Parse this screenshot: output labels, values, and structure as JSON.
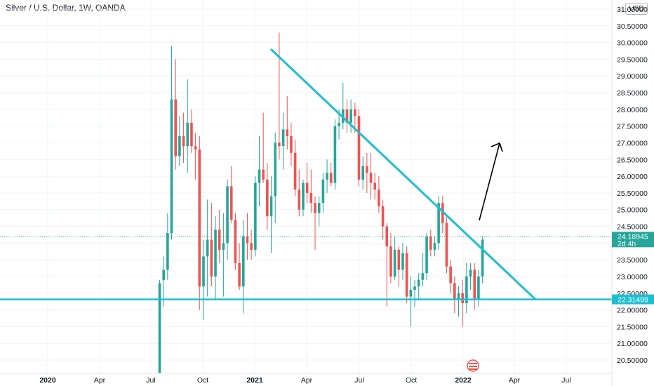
{
  "header": {
    "title": "Silver / U.S. Dollar, 1W, OANDA",
    "currency": "USD"
  },
  "colors": {
    "up": "#26a69a",
    "down": "#ef5350",
    "trendline": "#1cbfd1",
    "arrow": "#000000",
    "grid": "#f0f3fa"
  },
  "chart_data": {
    "type": "candlestick",
    "title": "Silver / U.S. Dollar, 1W, OANDA",
    "ylim": [
      20.2,
      31.55
    ],
    "y_ticks": [
      "31.00000",
      "30.50000",
      "30.00000",
      "29.50000",
      "29.00000",
      "28.50000",
      "28.00000",
      "27.50000",
      "27.00000",
      "26.50000",
      "26.00000",
      "25.50000",
      "25.00000",
      "24.50000",
      "24.00000",
      "23.50000",
      "23.00000",
      "22.50000",
      "22.00000",
      "21.50000",
      "21.00000",
      "20.50000"
    ],
    "x_ticks": [
      {
        "label": "2020",
        "bold": true
      },
      {
        "label": "Apr",
        "bold": false
      },
      {
        "label": "Jul",
        "bold": false
      },
      {
        "label": "Oct",
        "bold": false
      },
      {
        "label": "2021",
        "bold": true
      },
      {
        "label": "Apr",
        "bold": false
      },
      {
        "label": "Jul",
        "bold": false
      },
      {
        "label": "Oct",
        "bold": false
      },
      {
        "label": "2022",
        "bold": true
      },
      {
        "label": "Apr",
        "bold": false
      },
      {
        "label": "Jul",
        "bold": false
      }
    ],
    "last_price": {
      "value": 24.18945,
      "label": "24.18945",
      "countdown": "2d 4h"
    },
    "support_level": {
      "value": 22.31499,
      "label": "22.31499"
    },
    "candles": [
      {
        "o": 17.5,
        "h": 22.9,
        "l": 15.0,
        "c": 22.8
      },
      {
        "o": 22.9,
        "h": 23.6,
        "l": 22.1,
        "c": 23.2
      },
      {
        "o": 23.2,
        "h": 24.9,
        "l": 22.9,
        "c": 24.3
      },
      {
        "o": 24.3,
        "h": 29.9,
        "l": 24.1,
        "c": 28.3
      },
      {
        "o": 28.3,
        "h": 29.5,
        "l": 26.2,
        "c": 26.6
      },
      {
        "o": 26.6,
        "h": 27.8,
        "l": 26.3,
        "c": 27.2
      },
      {
        "o": 27.2,
        "h": 27.9,
        "l": 26.4,
        "c": 26.9
      },
      {
        "o": 26.9,
        "h": 28.9,
        "l": 26.1,
        "c": 27.6
      },
      {
        "o": 27.6,
        "h": 28.0,
        "l": 26.7,
        "c": 26.9
      },
      {
        "o": 26.9,
        "h": 27.3,
        "l": 25.9,
        "c": 26.8
      },
      {
        "o": 26.8,
        "h": 27.2,
        "l": 22.0,
        "c": 22.7
      },
      {
        "o": 22.7,
        "h": 24.1,
        "l": 21.7,
        "c": 23.6
      },
      {
        "o": 23.6,
        "h": 25.3,
        "l": 22.4,
        "c": 24.1
      },
      {
        "o": 24.1,
        "h": 25.2,
        "l": 22.7,
        "c": 23.0
      },
      {
        "o": 23.0,
        "h": 24.8,
        "l": 22.3,
        "c": 24.4
      },
      {
        "o": 24.4,
        "h": 25.0,
        "l": 23.4,
        "c": 23.8
      },
      {
        "o": 23.8,
        "h": 24.9,
        "l": 22.4,
        "c": 24.0
      },
      {
        "o": 24.0,
        "h": 25.9,
        "l": 23.5,
        "c": 25.7
      },
      {
        "o": 25.7,
        "h": 26.3,
        "l": 24.6,
        "c": 24.7
      },
      {
        "o": 24.7,
        "h": 24.9,
        "l": 23.2,
        "c": 23.4
      },
      {
        "o": 23.4,
        "h": 24.0,
        "l": 22.6,
        "c": 22.7
      },
      {
        "o": 22.7,
        "h": 24.7,
        "l": 21.9,
        "c": 24.2
      },
      {
        "o": 24.2,
        "h": 24.9,
        "l": 23.5,
        "c": 24.0
      },
      {
        "o": 24.0,
        "h": 24.4,
        "l": 23.5,
        "c": 23.8
      },
      {
        "o": 23.8,
        "h": 26.0,
        "l": 23.6,
        "c": 25.8
      },
      {
        "o": 25.8,
        "h": 27.2,
        "l": 25.1,
        "c": 26.2
      },
      {
        "o": 26.2,
        "h": 27.9,
        "l": 25.8,
        "c": 25.9
      },
      {
        "o": 25.9,
        "h": 26.4,
        "l": 24.4,
        "c": 24.8
      },
      {
        "o": 24.8,
        "h": 26.0,
        "l": 23.7,
        "c": 25.4
      },
      {
        "o": 25.4,
        "h": 27.3,
        "l": 24.6,
        "c": 27.0
      },
      {
        "o": 27.0,
        "h": 30.3,
        "l": 26.5,
        "c": 26.9
      },
      {
        "o": 26.9,
        "h": 27.9,
        "l": 26.2,
        "c": 27.4
      },
      {
        "o": 27.4,
        "h": 28.4,
        "l": 26.8,
        "c": 27.2
      },
      {
        "o": 27.2,
        "h": 27.6,
        "l": 26.3,
        "c": 26.7
      },
      {
        "o": 26.7,
        "h": 27.1,
        "l": 25.4,
        "c": 25.6
      },
      {
        "o": 25.6,
        "h": 26.2,
        "l": 24.8,
        "c": 25.0
      },
      {
        "o": 25.0,
        "h": 25.9,
        "l": 24.8,
        "c": 25.8
      },
      {
        "o": 25.8,
        "h": 26.4,
        "l": 25.2,
        "c": 25.5
      },
      {
        "o": 25.5,
        "h": 26.2,
        "l": 24.9,
        "c": 25.2
      },
      {
        "o": 25.2,
        "h": 25.4,
        "l": 23.8,
        "c": 24.9
      },
      {
        "o": 24.9,
        "h": 25.4,
        "l": 24.5,
        "c": 25.2
      },
      {
        "o": 25.2,
        "h": 26.1,
        "l": 24.9,
        "c": 25.9
      },
      {
        "o": 25.9,
        "h": 26.5,
        "l": 25.5,
        "c": 26.1
      },
      {
        "o": 26.1,
        "h": 26.4,
        "l": 25.7,
        "c": 25.8
      },
      {
        "o": 25.8,
        "h": 27.7,
        "l": 25.6,
        "c": 27.5
      },
      {
        "o": 27.5,
        "h": 28.0,
        "l": 27.1,
        "c": 27.6
      },
      {
        "o": 27.6,
        "h": 28.8,
        "l": 27.4,
        "c": 28.0
      },
      {
        "o": 28.0,
        "h": 28.3,
        "l": 27.3,
        "c": 27.6
      },
      {
        "o": 27.6,
        "h": 28.3,
        "l": 27.3,
        "c": 28.0
      },
      {
        "o": 28.0,
        "h": 28.2,
        "l": 27.3,
        "c": 27.8
      },
      {
        "o": 27.8,
        "h": 28.0,
        "l": 25.7,
        "c": 25.9
      },
      {
        "o": 25.9,
        "h": 26.6,
        "l": 25.6,
        "c": 26.3
      },
      {
        "o": 26.3,
        "h": 26.7,
        "l": 25.5,
        "c": 26.1
      },
      {
        "o": 26.1,
        "h": 26.7,
        "l": 25.3,
        "c": 25.8
      },
      {
        "o": 25.8,
        "h": 26.1,
        "l": 25.3,
        "c": 25.6
      },
      {
        "o": 25.6,
        "h": 26.0,
        "l": 24.9,
        "c": 25.1
      },
      {
        "o": 25.1,
        "h": 25.3,
        "l": 24.1,
        "c": 24.5
      },
      {
        "o": 24.5,
        "h": 24.6,
        "l": 22.1,
        "c": 23.9
      },
      {
        "o": 23.9,
        "h": 24.3,
        "l": 22.8,
        "c": 23.0
      },
      {
        "o": 23.0,
        "h": 24.2,
        "l": 22.9,
        "c": 23.8
      },
      {
        "o": 23.8,
        "h": 23.9,
        "l": 22.7,
        "c": 23.2
      },
      {
        "o": 23.2,
        "h": 24.0,
        "l": 22.9,
        "c": 23.7
      },
      {
        "o": 23.7,
        "h": 23.9,
        "l": 22.2,
        "c": 22.4
      },
      {
        "o": 22.4,
        "h": 23.0,
        "l": 21.5,
        "c": 22.6
      },
      {
        "o": 22.6,
        "h": 22.9,
        "l": 22.1,
        "c": 22.7
      },
      {
        "o": 22.7,
        "h": 23.1,
        "l": 22.3,
        "c": 22.9
      },
      {
        "o": 22.9,
        "h": 23.7,
        "l": 22.7,
        "c": 23.1
      },
      {
        "o": 23.1,
        "h": 24.3,
        "l": 22.9,
        "c": 24.2
      },
      {
        "o": 24.2,
        "h": 24.4,
        "l": 23.6,
        "c": 23.8
      },
      {
        "o": 23.8,
        "h": 24.2,
        "l": 23.6,
        "c": 24.0
      },
      {
        "o": 24.0,
        "h": 25.4,
        "l": 23.8,
        "c": 25.2
      },
      {
        "o": 25.2,
        "h": 25.4,
        "l": 24.3,
        "c": 24.6
      },
      {
        "o": 24.6,
        "h": 24.8,
        "l": 23.1,
        "c": 23.3
      },
      {
        "o": 23.3,
        "h": 23.5,
        "l": 22.5,
        "c": 22.8
      },
      {
        "o": 22.8,
        "h": 23.0,
        "l": 21.9,
        "c": 22.3
      },
      {
        "o": 22.3,
        "h": 22.7,
        "l": 21.8,
        "c": 22.5
      },
      {
        "o": 22.5,
        "h": 22.9,
        "l": 21.5,
        "c": 22.2
      },
      {
        "o": 22.2,
        "h": 23.4,
        "l": 21.9,
        "c": 23.0
      },
      {
        "o": 23.0,
        "h": 23.4,
        "l": 22.6,
        "c": 23.2
      },
      {
        "o": 23.2,
        "h": 23.4,
        "l": 22.0,
        "c": 22.3
      },
      {
        "o": 22.3,
        "h": 23.2,
        "l": 22.1,
        "c": 23.0
      },
      {
        "o": 23.0,
        "h": 24.2,
        "l": 22.8,
        "c": 24.1
      }
    ]
  }
}
